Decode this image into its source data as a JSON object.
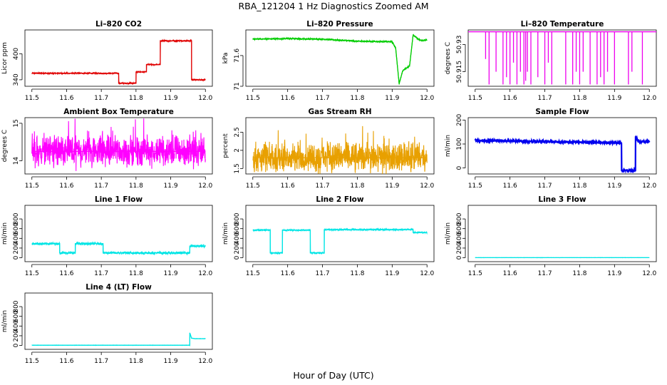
{
  "figure": {
    "title": "RBA_121204  1 Hz Diagnostics Zoomed AM",
    "xlabel": "Hour of Day (UTC)"
  },
  "chart_data": [
    {
      "id": "co2",
      "type": "line",
      "title": "Li–820 CO2",
      "ylabel": "Licor ppm",
      "color": "#e00000",
      "xlim": [
        11.48,
        12.02
      ],
      "xticks": [
        11.5,
        11.6,
        11.7,
        11.8,
        11.9,
        12.0
      ],
      "ylim": [
        325,
        455
      ],
      "yticks": [
        340,
        400
      ],
      "x": [
        11.5,
        11.75,
        11.75,
        11.8,
        11.8,
        11.83,
        11.83,
        11.87,
        11.87,
        11.96,
        11.96,
        12.0
      ],
      "y": [
        355,
        355,
        332,
        332,
        358,
        358,
        375,
        375,
        430,
        430,
        340,
        340
      ],
      "noise": 1.5
    },
    {
      "id": "pressure",
      "type": "line",
      "title": "Li–820 Pressure",
      "ylabel": "kPa",
      "color": "#00cc00",
      "xlim": [
        11.48,
        12.02
      ],
      "xticks": [
        11.5,
        11.6,
        11.7,
        11.8,
        11.9,
        12.0
      ],
      "ylim": [
        71.0,
        72.1
      ],
      "yticks": [
        71.0,
        71.6
      ],
      "x": [
        11.5,
        11.6,
        11.7,
        11.8,
        11.9,
        11.91,
        11.92,
        11.93,
        11.94,
        11.95,
        11.96,
        11.98,
        12.0
      ],
      "y": [
        71.92,
        71.93,
        71.92,
        71.88,
        71.87,
        71.75,
        71.05,
        71.3,
        71.35,
        71.4,
        72.0,
        71.9,
        71.9
      ],
      "noise": 0.015
    },
    {
      "id": "temperature",
      "type": "line",
      "title": "Li–820 Temperature",
      "ylabel": "degrees C",
      "color": "#ee00ee",
      "xlim": [
        11.48,
        12.02
      ],
      "xticks": [
        11.5,
        11.6,
        11.7,
        11.8,
        11.9,
        12.0
      ],
      "ylim": [
        50.907,
        50.938
      ],
      "yticks": [
        50.915,
        50.93
      ],
      "baseline": 50.937,
      "low": 50.908,
      "x": [
        11.53,
        11.54,
        11.56,
        11.58,
        11.59,
        11.6,
        11.61,
        11.62,
        11.63,
        11.64,
        11.645,
        11.65,
        11.66,
        11.68,
        11.7,
        11.71,
        11.72,
        11.76,
        11.78,
        11.79,
        11.8,
        11.81,
        11.83,
        11.85,
        11.86,
        11.87,
        11.88,
        11.9,
        11.94,
        11.95,
        11.98
      ],
      "y": [
        50.922,
        50.908,
        50.915,
        50.908,
        50.912,
        50.908,
        50.92,
        50.908,
        50.915,
        50.908,
        50.91,
        50.915,
        50.908,
        50.912,
        50.908,
        50.92,
        50.908,
        50.908,
        50.908,
        50.915,
        50.908,
        50.915,
        50.908,
        50.908,
        50.912,
        50.908,
        50.915,
        50.908,
        50.908,
        50.915,
        50.908
      ]
    },
    {
      "id": "ambient",
      "type": "line",
      "title": "Ambient Box Temperature",
      "ylabel": "degrees C",
      "color": "#ff00ff",
      "xlim": [
        11.48,
        12.02
      ],
      "xticks": [
        11.5,
        11.6,
        11.7,
        11.8,
        11.9,
        12.0
      ],
      "ylim": [
        13.65,
        15.15
      ],
      "yticks": [
        14.0,
        15.0
      ],
      "x": [
        11.5,
        12.0
      ],
      "y": [
        14.25,
        14.25
      ],
      "noise": 0.3
    },
    {
      "id": "rh",
      "type": "line",
      "title": "Gas Stream RH",
      "ylabel": "percent",
      "color": "#e8a000",
      "xlim": [
        11.48,
        12.02
      ],
      "xticks": [
        11.5,
        11.6,
        11.7,
        11.8,
        11.9,
        12.0
      ],
      "ylim": [
        1.35,
        2.9
      ],
      "yticks": [
        1.5,
        2.0,
        2.5
      ],
      "x": [
        11.5,
        12.0
      ],
      "y": [
        1.8,
        1.8
      ],
      "noise": 0.3
    },
    {
      "id": "sample_flow",
      "type": "line",
      "title": "Sample Flow",
      "ylabel": "ml/min",
      "color": "#0000ee",
      "xlim": [
        11.48,
        12.02
      ],
      "xticks": [
        11.5,
        11.6,
        11.7,
        11.8,
        11.9,
        12.0
      ],
      "ylim": [
        -25,
        210
      ],
      "yticks": [
        0,
        100,
        200
      ],
      "x": [
        11.5,
        11.7,
        11.9,
        11.92,
        11.92,
        11.96,
        11.96,
        11.97,
        12.0
      ],
      "y": [
        115,
        110,
        105,
        105,
        -10,
        -10,
        130,
        110,
        110
      ],
      "noise": 4
    },
    {
      "id": "line1",
      "type": "line",
      "title": "Line 1 Flow",
      "ylabel": "ml/min",
      "color": "#00e5e5",
      "xlim": [
        11.48,
        12.02
      ],
      "xticks": [
        11.5,
        11.6,
        11.7,
        11.8,
        11.9,
        12.0
      ],
      "ylim": [
        -80,
        1080
      ],
      "yticks": [
        0,
        200,
        400,
        600,
        800
      ],
      "x": [
        11.5,
        11.58,
        11.58,
        11.625,
        11.625,
        11.705,
        11.705,
        11.955,
        11.955,
        12.0
      ],
      "y": [
        290,
        290,
        100,
        100,
        290,
        290,
        100,
        100,
        240,
        240
      ],
      "noise": 25
    },
    {
      "id": "line2",
      "type": "line",
      "title": "Line 2 Flow",
      "ylabel": "ml/min",
      "color": "#00e5e5",
      "xlim": [
        11.48,
        12.02
      ],
      "xticks": [
        11.5,
        11.6,
        11.7,
        11.8,
        11.9,
        12.0
      ],
      "ylim": [
        -80,
        1080
      ],
      "yticks": [
        0,
        200,
        400,
        600,
        800
      ],
      "x": [
        11.5,
        11.55,
        11.55,
        11.585,
        11.585,
        11.665,
        11.665,
        11.705,
        11.705,
        11.96,
        11.96,
        12.0
      ],
      "y": [
        570,
        570,
        100,
        100,
        570,
        570,
        100,
        100,
        580,
        580,
        520,
        520
      ],
      "noise": 15
    },
    {
      "id": "line3",
      "type": "line",
      "title": "Line 3 Flow",
      "ylabel": "ml/min",
      "color": "#00e5e5",
      "xlim": [
        11.48,
        12.02
      ],
      "xticks": [
        11.5,
        11.6,
        11.7,
        11.8,
        11.9,
        12.0
      ],
      "ylim": [
        -80,
        1080
      ],
      "yticks": [
        0,
        200,
        400,
        600,
        800
      ],
      "x": [
        11.5,
        12.0
      ],
      "y": [
        2,
        2
      ],
      "noise": 2
    },
    {
      "id": "line4",
      "type": "line",
      "title": "Line 4 (LT) Flow",
      "ylabel": "ml/min",
      "color": "#00e5e5",
      "xlim": [
        11.48,
        12.02
      ],
      "xticks": [
        11.5,
        11.6,
        11.7,
        11.8,
        11.9,
        12.0
      ],
      "ylim": [
        -80,
        1080
      ],
      "yticks": [
        0,
        200,
        400,
        600,
        800
      ],
      "x": [
        11.5,
        11.955,
        11.955,
        11.96,
        11.97,
        12.0
      ],
      "y": [
        5,
        5,
        260,
        150,
        140,
        140
      ],
      "noise": 3
    }
  ]
}
